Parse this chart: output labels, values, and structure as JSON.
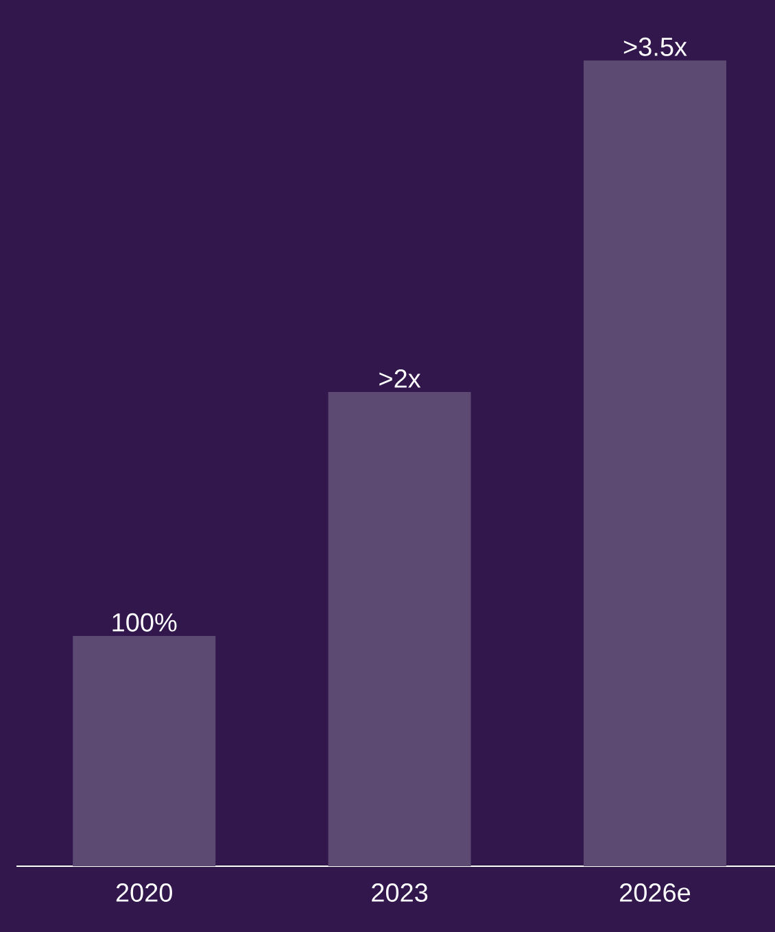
{
  "chart_data": {
    "type": "bar",
    "categories": [
      "2020",
      "2023",
      "2026e"
    ],
    "values": [
      100,
      206,
      350
    ],
    "value_labels": [
      "100%",
      ">2x",
      ">3.5x"
    ],
    "color": "#5c4a72"
  }
}
